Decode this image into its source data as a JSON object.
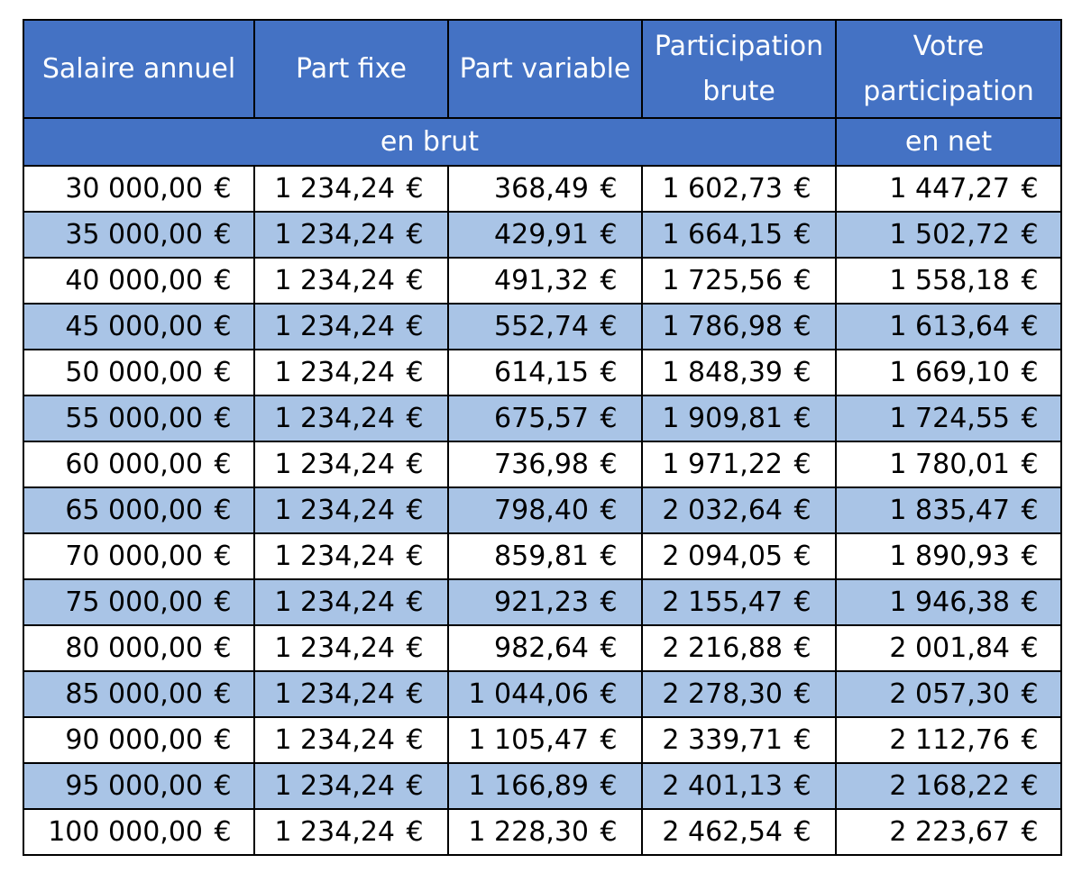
{
  "headers": {
    "salaire": "Salaire annuel",
    "fixe": "Part fixe",
    "variable": "Part variable",
    "brute_line1": "Participation",
    "brute_line2": "brute",
    "votre_line1": "Votre",
    "votre_line2": "participation",
    "en_brut": "en brut",
    "en_net": "en net"
  },
  "currency": "€",
  "row_colors": {
    "even": "#ffffff",
    "odd": "#a9c4e6",
    "header": "#4472c4"
  },
  "rows": [
    [
      "30 000,00",
      "1 234,24",
      "368,49",
      "1 602,73",
      "1 447,27"
    ],
    [
      "35 000,00",
      "1 234,24",
      "429,91",
      "1 664,15",
      "1 502,72"
    ],
    [
      "40 000,00",
      "1 234,24",
      "491,32",
      "1 725,56",
      "1 558,18"
    ],
    [
      "45 000,00",
      "1 234,24",
      "552,74",
      "1 786,98",
      "1 613,64"
    ],
    [
      "50 000,00",
      "1 234,24",
      "614,15",
      "1 848,39",
      "1 669,10"
    ],
    [
      "55 000,00",
      "1 234,24",
      "675,57",
      "1 909,81",
      "1 724,55"
    ],
    [
      "60 000,00",
      "1 234,24",
      "736,98",
      "1 971,22",
      "1 780,01"
    ],
    [
      "65 000,00",
      "1 234,24",
      "798,40",
      "2 032,64",
      "1 835,47"
    ],
    [
      "70 000,00",
      "1 234,24",
      "859,81",
      "2 094,05",
      "1 890,93"
    ],
    [
      "75 000,00",
      "1 234,24",
      "921,23",
      "2 155,47",
      "1 946,38"
    ],
    [
      "80 000,00",
      "1 234,24",
      "982,64",
      "2 216,88",
      "2 001,84"
    ],
    [
      "85 000,00",
      "1 234,24",
      "1 044,06",
      "2 278,30",
      "2 057,30"
    ],
    [
      "90 000,00",
      "1 234,24",
      "1 105,47",
      "2 339,71",
      "2 112,76"
    ],
    [
      "95 000,00",
      "1 234,24",
      "1 166,89",
      "2 401,13",
      "2 168,22"
    ],
    [
      "100 000,00",
      "1 234,24",
      "1 228,30",
      "2 462,54",
      "2 223,67"
    ]
  ]
}
